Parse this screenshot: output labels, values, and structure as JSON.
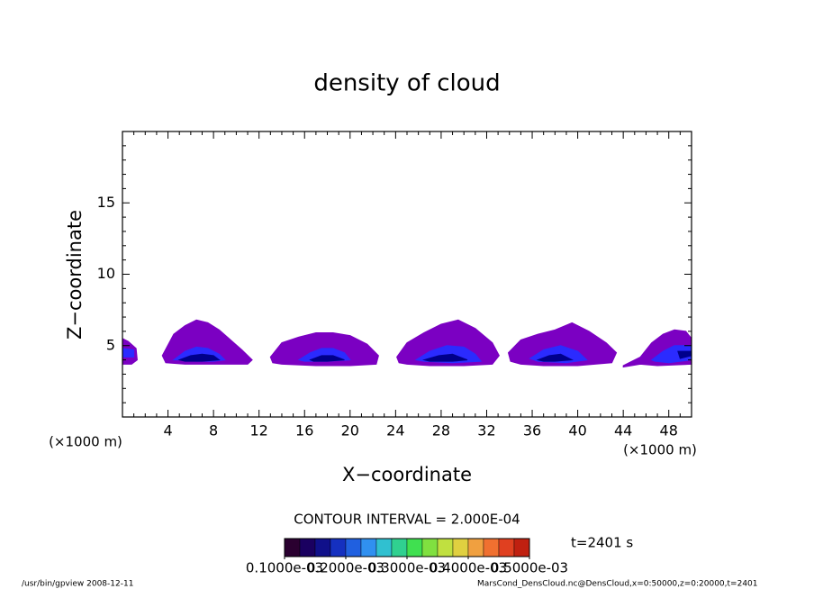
{
  "chart_data": {
    "type": "contour",
    "title": "density of cloud",
    "xlabel": "X−coordinate",
    "ylabel": "Z−coordinate",
    "x_unit_left": "(×1000 m)",
    "x_unit_right": "(×1000 m)",
    "xlim": [
      0,
      50
    ],
    "ylim": [
      0,
      20
    ],
    "xticks": [
      4,
      8,
      12,
      16,
      20,
      24,
      28,
      32,
      36,
      40,
      44,
      48
    ],
    "yticks": [
      5,
      10,
      15
    ],
    "minor_xticks": [
      1,
      2,
      3,
      5,
      6,
      7,
      9,
      10,
      11,
      13,
      14,
      15,
      17,
      18,
      19,
      21,
      22,
      23,
      25,
      26,
      27,
      29,
      30,
      31,
      33,
      34,
      35,
      37,
      38,
      39,
      41,
      42,
      43,
      45,
      46,
      47,
      49
    ],
    "minor_yticks": [
      1,
      2,
      3,
      4,
      6,
      7,
      8,
      9,
      11,
      12,
      13,
      14,
      16,
      17,
      18,
      19
    ],
    "regions": [
      {
        "color": "#7b00c2",
        "x": [
          0,
          0.5,
          1.2,
          1.3,
          0.8,
          0
        ],
        "z": [
          5.5,
          5.3,
          4.8,
          4.0,
          3.7,
          3.7
        ]
      },
      {
        "color": "#2b2bff",
        "x": [
          0,
          1.0,
          1.0,
          0
        ],
        "z": [
          4.8,
          4.7,
          4.2,
          4.2
        ]
      },
      {
        "color": "#7b00c2",
        "x": [
          3.5,
          4.5,
          5.5,
          6.5,
          7.5,
          8.5,
          9.5,
          10.5,
          11.4,
          11.0,
          9.5,
          7.5,
          5.5,
          3.8
        ],
        "z": [
          4.3,
          5.8,
          6.4,
          6.8,
          6.6,
          6.1,
          5.4,
          4.7,
          4.0,
          3.7,
          3.7,
          3.7,
          3.7,
          3.8
        ]
      },
      {
        "color": "#2b2bff",
        "x": [
          4.5,
          5.5,
          6.5,
          7.5,
          8.5,
          9.0,
          8.0,
          6.5,
          5.0
        ],
        "z": [
          4.0,
          4.6,
          4.9,
          4.8,
          4.4,
          4.0,
          3.9,
          3.9,
          4.0
        ]
      },
      {
        "color": "#00008b",
        "x": [
          5.0,
          6.0,
          7.0,
          8.0,
          8.5,
          7.0,
          5.5
        ],
        "z": [
          4.0,
          4.3,
          4.4,
          4.3,
          4.0,
          3.9,
          3.9
        ]
      },
      {
        "color": "#7b00c2",
        "x": [
          13.0,
          14.0,
          15.5,
          17,
          18.5,
          20,
          21.5,
          22.5,
          22.3,
          20,
          17,
          14,
          13.2
        ],
        "z": [
          4.2,
          5.2,
          5.6,
          5.9,
          5.9,
          5.7,
          5.1,
          4.3,
          3.7,
          3.6,
          3.6,
          3.7,
          3.8
        ]
      },
      {
        "color": "#2b2bff",
        "x": [
          15.5,
          16.5,
          17.5,
          18.5,
          19.5,
          20.0,
          18,
          16
        ],
        "z": [
          4.0,
          4.5,
          4.8,
          4.8,
          4.5,
          4.0,
          3.9,
          3.9
        ]
      },
      {
        "color": "#00008b",
        "x": [
          16.5,
          17.5,
          18.5,
          19.5,
          18,
          16.8
        ],
        "z": [
          4.0,
          4.3,
          4.3,
          4.0,
          3.9,
          3.9
        ]
      },
      {
        "color": "#7b00c2",
        "x": [
          24.1,
          25,
          26.5,
          28,
          29.5,
          31,
          32.5,
          33.1,
          32.5,
          30,
          27,
          25,
          24.3
        ],
        "z": [
          4.2,
          5.2,
          5.9,
          6.5,
          6.8,
          6.2,
          5.2,
          4.3,
          3.7,
          3.6,
          3.6,
          3.7,
          3.8
        ]
      },
      {
        "color": "#2b2bff",
        "x": [
          25.8,
          27,
          28.5,
          30,
          31,
          31.5,
          29,
          26.5
        ],
        "z": [
          4.0,
          4.6,
          5.0,
          4.9,
          4.4,
          3.9,
          3.8,
          3.9
        ]
      },
      {
        "color": "#00008b",
        "x": [
          26.5,
          27.8,
          29,
          30.3,
          29,
          27
        ],
        "z": [
          4.0,
          4.3,
          4.4,
          4.0,
          3.9,
          3.9
        ]
      },
      {
        "color": "#7b00c2",
        "x": [
          33.9,
          35,
          36.5,
          38,
          39.5,
          41,
          42.5,
          43.4,
          43,
          40,
          37,
          35,
          34.1
        ],
        "z": [
          4.5,
          5.4,
          5.8,
          6.1,
          6.6,
          6.0,
          5.2,
          4.5,
          3.8,
          3.6,
          3.6,
          3.7,
          3.9
        ]
      },
      {
        "color": "#2b2bff",
        "x": [
          35.8,
          37,
          38.5,
          40,
          40.8,
          39,
          36.5
        ],
        "z": [
          4.1,
          4.7,
          5.0,
          4.6,
          4.0,
          3.8,
          3.9
        ]
      },
      {
        "color": "#00008b",
        "x": [
          36.5,
          37.5,
          38.5,
          39.5,
          38,
          37
        ],
        "z": [
          4.0,
          4.3,
          4.4,
          4.0,
          3.9,
          3.9
        ]
      },
      {
        "color": "#7b00c2",
        "x": [
          44,
          45.5,
          46.5,
          47.5,
          48.5,
          49.5,
          50,
          50,
          47,
          45.5,
          44
        ],
        "z": [
          3.6,
          4.2,
          5.2,
          5.8,
          6.1,
          6.0,
          5.5,
          3.7,
          3.6,
          3.7,
          3.5
        ]
      },
      {
        "color": "#2b2bff",
        "x": [
          46.5,
          47.5,
          48.5,
          50,
          50,
          48,
          46.8
        ],
        "z": [
          4.0,
          4.6,
          5.0,
          5.0,
          4.0,
          3.8,
          3.9
        ]
      },
      {
        "color": "#00008b",
        "x": [
          48.8,
          50,
          50,
          49
        ],
        "z": [
          4.6,
          4.6,
          4.3,
          4.1
        ]
      }
    ],
    "contour_interval": "CONTOUR INTERVAL = 2.000E-04",
    "time_label": "t=2401 s",
    "colorbar": {
      "lim": [
        0.0001,
        0.0005
      ],
      "ticks": [
        {
          "value": 0.0001,
          "label": "0.1000e-03"
        },
        {
          "value": 0.0002,
          "label": "0.2000e-03"
        },
        {
          "value": 0.0003,
          "label": "0.3000e-03"
        },
        {
          "value": 0.0004,
          "label": "0.4000e-03"
        },
        {
          "value": 0.0005,
          "label": "0.5000e-03"
        }
      ],
      "colors": [
        "#2a0030",
        "#1a0060",
        "#10108a",
        "#1530c0",
        "#2060e0",
        "#3090f0",
        "#30c0d0",
        "#30d090",
        "#40e050",
        "#80e040",
        "#c0e040",
        "#e0d040",
        "#f0a040",
        "#f07030",
        "#e04020",
        "#c02010"
      ]
    },
    "footer_left": "/usr/bin/gpview   2008-12-11",
    "footer_right": "MarsCond_DensCloud.nc@DensCloud,x=0:50000,z=0:20000,t=2401"
  }
}
